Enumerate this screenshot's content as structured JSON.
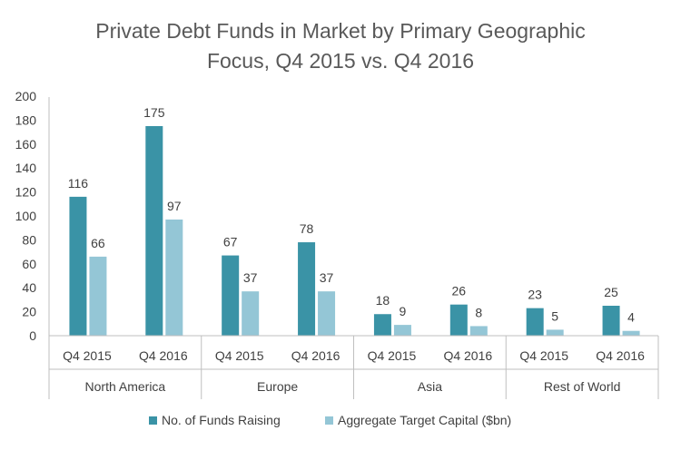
{
  "chart_data": {
    "type": "bar",
    "title_lines": [
      "Private Debt Funds in Market by Primary Geographic",
      "Focus, Q4 2015 vs. Q4 2016"
    ],
    "groups": [
      "North America",
      "Europe",
      "Asia",
      "Rest of World"
    ],
    "categories": [
      "Q4 2015",
      "Q4 2016"
    ],
    "series": [
      {
        "name": "No. of Funds Raising",
        "color": "#3a93a6",
        "values": [
          [
            116,
            175
          ],
          [
            67,
            78
          ],
          [
            18,
            26
          ],
          [
            23,
            25
          ]
        ]
      },
      {
        "name": "Aggregate Target Capital ($bn)",
        "color": "#94c6d6",
        "values": [
          [
            66,
            97
          ],
          [
            37,
            37
          ],
          [
            9,
            8
          ],
          [
            5,
            4
          ]
        ]
      }
    ],
    "ylim": [
      0,
      200
    ],
    "yticks": [
      "0",
      "20",
      "40",
      "60",
      "80",
      "100",
      "120",
      "140",
      "160",
      "180",
      "200"
    ],
    "grid": false,
    "legend_position": "bottom"
  }
}
